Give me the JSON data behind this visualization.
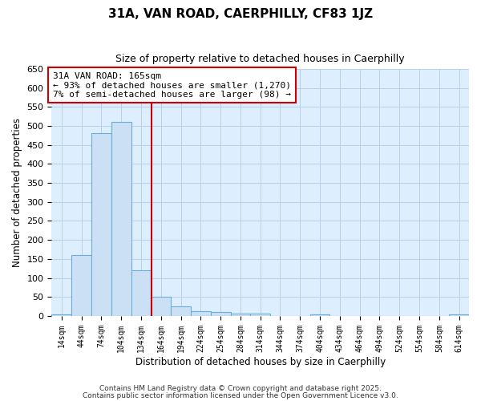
{
  "title": "31A, VAN ROAD, CAERPHILLY, CF83 1JZ",
  "subtitle": "Size of property relative to detached houses in Caerphilly",
  "xlabel": "Distribution of detached houses by size in Caerphilly",
  "ylabel": "Number of detached properties",
  "bar_left_edges": [
    14,
    44,
    74,
    104,
    134,
    164,
    194,
    224,
    254,
    284,
    314,
    344,
    374,
    404,
    434,
    464,
    494,
    524,
    554,
    584,
    614
  ],
  "bar_heights": [
    5,
    160,
    480,
    510,
    120,
    50,
    25,
    13,
    10,
    7,
    7,
    0,
    0,
    5,
    0,
    0,
    0,
    0,
    0,
    0,
    4
  ],
  "bin_width": 30,
  "bar_facecolor": "#cce0f5",
  "bar_edgecolor": "#6aaed6",
  "grid_color": "#b8d0e8",
  "plot_bg_color": "#ddeeff",
  "fig_bg_color": "#ffffff",
  "vline_x": 165,
  "vline_color": "#cc0000",
  "annotation_text": "31A VAN ROAD: 165sqm\n← 93% of detached houses are smaller (1,270)\n7% of semi-detached houses are larger (98) →",
  "annotation_box_color": "#cc0000",
  "ylim": [
    0,
    650
  ],
  "xtick_labels": [
    "14sqm",
    "44sqm",
    "74sqm",
    "104sqm",
    "134sqm",
    "164sqm",
    "194sqm",
    "224sqm",
    "254sqm",
    "284sqm",
    "314sqm",
    "344sqm",
    "374sqm",
    "404sqm",
    "434sqm",
    "464sqm",
    "494sqm",
    "524sqm",
    "554sqm",
    "584sqm",
    "614sqm"
  ],
  "ytick_vals": [
    0,
    50,
    100,
    150,
    200,
    250,
    300,
    350,
    400,
    450,
    500,
    550,
    600,
    650
  ],
  "footer_line1": "Contains HM Land Registry data © Crown copyright and database right 2025.",
  "footer_line2": "Contains public sector information licensed under the Open Government Licence v3.0."
}
